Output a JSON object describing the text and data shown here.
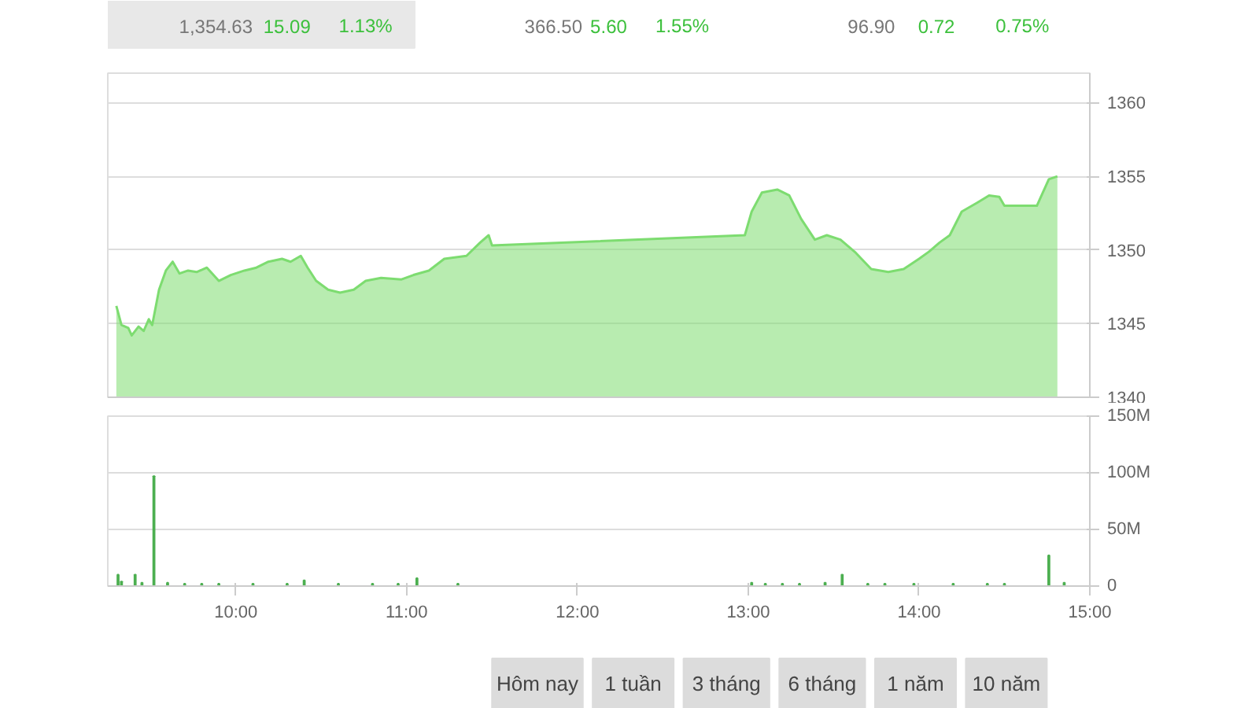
{
  "chart_data": [
    {
      "type": "other",
      "annotations": [
        "1,354.63",
        "15.09",
        "1.13%",
        "366.50",
        "5.60",
        "1.55%",
        "96.90",
        "0.72",
        "0.75%"
      ]
    },
    {
      "type": "area",
      "color": "#7ddc70",
      "x": [
        9.3,
        9.33,
        9.37,
        9.39,
        9.43,
        9.46,
        9.49,
        9.51,
        9.55,
        9.59,
        9.63,
        9.67,
        9.72,
        9.77,
        9.83,
        9.9,
        9.97,
        10.05,
        10.12,
        10.19,
        10.27,
        10.32,
        10.38,
        10.42,
        10.47,
        10.54,
        10.61,
        10.69,
        10.76,
        10.85,
        10.97,
        11.04,
        11.13,
        11.22,
        11.35,
        11.43,
        11.48,
        11.5,
        12.98,
        13.02,
        13.08,
        13.17,
        13.24,
        13.31,
        13.39,
        13.46,
        13.54,
        13.63,
        13.72,
        13.82,
        13.91,
        14.0,
        14.06,
        14.12,
        14.18,
        14.25,
        14.34,
        14.41,
        14.47,
        14.5,
        14.69,
        14.76,
        14.81
      ],
      "values": [
        1346.2,
        1344.9,
        1344.7,
        1344.2,
        1344.8,
        1344.5,
        1345.3,
        1344.9,
        1347.3,
        1348.6,
        1349.2,
        1348.4,
        1348.6,
        1348.5,
        1348.8,
        1347.9,
        1348.3,
        1348.6,
        1348.8,
        1349.2,
        1349.4,
        1349.2,
        1349.6,
        1348.8,
        1347.9,
        1347.3,
        1347.1,
        1347.3,
        1347.9,
        1348.1,
        1348.0,
        1348.3,
        1348.6,
        1349.4,
        1349.6,
        1350.5,
        1351.0,
        1350.3,
        1351.0,
        1352.6,
        1353.9,
        1354.1,
        1353.7,
        1352.1,
        1350.7,
        1351.0,
        1350.7,
        1349.8,
        1348.7,
        1348.5,
        1348.7,
        1349.4,
        1349.9,
        1350.5,
        1351.0,
        1352.6,
        1353.2,
        1353.7,
        1353.6,
        1353.0,
        1353.0,
        1354.8,
        1355.0
      ],
      "xlim": [
        9.25,
        15
      ],
      "ylim": [
        1340,
        1362
      ],
      "yticks": [
        1340,
        1345,
        1350,
        1355,
        1360
      ],
      "grid": "y",
      "tick_labels": "y"
    },
    {
      "type": "bar",
      "color": "#4caf50",
      "x": [
        9.31,
        9.33,
        9.41,
        9.45,
        9.52,
        9.6,
        9.7,
        9.8,
        9.9,
        10.1,
        10.3,
        10.4,
        10.6,
        10.8,
        10.95,
        11.06,
        11.3,
        13.02,
        13.1,
        13.2,
        13.3,
        13.45,
        13.55,
        13.7,
        13.8,
        13.97,
        14.2,
        14.4,
        14.5,
        14.76,
        14.85
      ],
      "values": [
        10,
        4,
        10,
        3,
        97,
        3,
        2,
        2,
        2,
        2,
        2,
        5,
        2,
        2,
        2,
        7,
        2,
        3,
        2,
        2,
        2,
        3,
        10,
        2,
        2,
        2,
        2,
        2,
        2,
        27,
        3
      ],
      "xlim": [
        9.25,
        15
      ],
      "xticks": [
        {
          "value": 10,
          "label": "10:00"
        },
        {
          "value": 11,
          "label": "11:00"
        },
        {
          "value": 12,
          "label": "12:00"
        },
        {
          "value": 13,
          "label": "13:00"
        },
        {
          "value": 14,
          "label": "14:00"
        },
        {
          "value": 15,
          "label": "15:00"
        }
      ],
      "ylim": [
        0,
        150
      ],
      "yticks": [
        {
          "value": 0,
          "label": "0"
        },
        {
          "value": 50,
          "label": "50M"
        },
        {
          "value": 100,
          "label": "100M"
        },
        {
          "value": 150,
          "label": "150M"
        }
      ],
      "grid": "y"
    },
    {
      "type": "other",
      "annotations": [
        "Hôm nay",
        "1 tuần",
        "3 tháng",
        "6 tháng",
        "1 năm",
        "10 năm"
      ]
    }
  ]
}
